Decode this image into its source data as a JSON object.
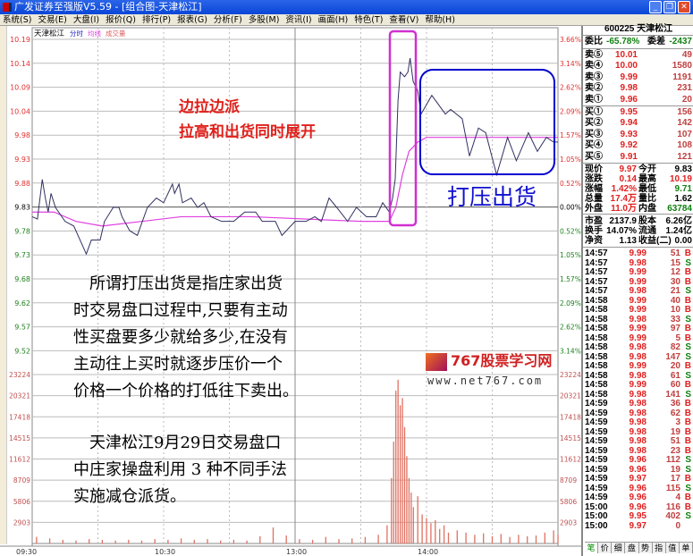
{
  "window": {
    "title": "广发证券至强版V5.59 - [组合图-天津松江]"
  },
  "menu": [
    "系统(S)",
    "交易(E)",
    "大盘(I)",
    "报价(Q)",
    "排行(P)",
    "报表(G)",
    "分析(F)",
    "多股(M)",
    "资讯(I)",
    "画面(H)",
    "特色(T)",
    "查看(V)",
    "帮助(H)"
  ],
  "chart": {
    "stock_name": "天津松江",
    "tag_fenshi": "分时",
    "tag_junxian": "均线",
    "tag_volume": "成交量",
    "price_ticks": [
      "10.19",
      "10.14",
      "10.09",
      "10.04",
      "9.98",
      "9.93",
      "9.88",
      "9.83",
      "9.78",
      "9.73",
      "9.68",
      "9.62",
      "9.57",
      "9.52"
    ],
    "pct_ticks": [
      "3.66%",
      "3.14%",
      "2.62%",
      "2.09%",
      "1.57%",
      "1.05%",
      "0.52%",
      "0.00%",
      "0.52%",
      "1.05%",
      "1.57%",
      "2.09%",
      "2.62%",
      "3.14%"
    ],
    "volume_ticks": [
      "23224",
      "20321",
      "17418",
      "14515",
      "11612",
      "8709",
      "5806",
      "2903"
    ],
    "time_ticks": [
      "09:30",
      "10:30",
      "13:00",
      "14:00"
    ],
    "colors": {
      "price_line": "#303060",
      "avg_line": "#e040e0",
      "volume_bar": "#e07060",
      "highlight_box": "#d030d0",
      "blue_box": "#0000d0"
    }
  },
  "chart_data": {
    "type": "line",
    "prev_close": 9.83,
    "ylim": [
      9.52,
      10.19
    ],
    "volume_max": 23224,
    "price": [
      [
        0,
        9.81
      ],
      [
        2.4,
        9.805
      ],
      [
        4.6,
        9.89
      ],
      [
        6,
        9.85
      ],
      [
        7.3,
        9.82
      ],
      [
        8.6,
        9.86
      ],
      [
        10.6,
        9.83
      ],
      [
        15,
        9.8
      ],
      [
        19,
        9.79
      ],
      [
        24.7,
        9.73
      ],
      [
        27,
        9.76
      ],
      [
        31,
        9.76
      ],
      [
        33,
        9.8
      ],
      [
        37,
        9.83
      ],
      [
        39.6,
        9.83
      ],
      [
        41,
        9.81
      ],
      [
        44.5,
        9.78
      ],
      [
        48,
        9.77
      ],
      [
        52.6,
        9.83
      ],
      [
        56.7,
        9.85
      ],
      [
        60,
        9.84
      ],
      [
        64,
        9.88
      ],
      [
        65,
        9.86
      ],
      [
        67,
        9.88
      ],
      [
        68.6,
        9.84
      ],
      [
        72.6,
        9.85
      ],
      [
        75.5,
        9.83
      ],
      [
        78.4,
        9.84
      ],
      [
        81.6,
        9.81
      ],
      [
        86.5,
        9.8
      ],
      [
        92,
        9.8
      ],
      [
        97,
        9.82
      ],
      [
        102,
        9.82
      ],
      [
        105,
        9.8
      ],
      [
        111,
        9.8
      ],
      [
        114,
        9.77
      ],
      [
        120,
        9.8
      ],
      [
        125,
        9.8
      ],
      [
        129,
        9.81
      ],
      [
        132,
        9.8
      ],
      [
        135.5,
        9.85
      ],
      [
        139,
        9.83
      ],
      [
        144,
        9.8
      ],
      [
        148,
        9.83
      ],
      [
        152.6,
        9.81
      ],
      [
        157,
        9.81
      ],
      [
        160,
        9.84
      ],
      [
        163,
        9.82
      ],
      [
        164.5,
        9.85
      ],
      [
        165.7,
        9.89
      ],
      [
        167,
        10.06
      ],
      [
        168,
        10.12
      ],
      [
        170,
        10.11
      ],
      [
        171.5,
        10.12
      ],
      [
        172.5,
        10.15
      ],
      [
        173.9,
        10.1
      ],
      [
        176,
        10.08
      ],
      [
        177.5,
        10.03
      ],
      [
        182.4,
        10.07
      ],
      [
        188.6,
        10.03
      ],
      [
        191,
        10.04
      ],
      [
        196.3,
        10.02
      ],
      [
        199.6,
        9.94
      ],
      [
        203.7,
        10.0
      ],
      [
        207,
        9.99
      ],
      [
        212,
        9.9
      ],
      [
        217,
        9.98
      ],
      [
        221,
        9.93
      ],
      [
        226.5,
        9.99
      ],
      [
        230.6,
        9.95
      ],
      [
        234.7,
        9.98
      ],
      [
        238,
        9.97
      ],
      [
        240,
        9.97
      ]
    ],
    "average": [
      [
        0,
        9.82
      ],
      [
        10,
        9.82
      ],
      [
        20,
        9.8
      ],
      [
        32,
        9.79
      ],
      [
        50,
        9.8
      ],
      [
        68,
        9.81
      ],
      [
        100,
        9.81
      ],
      [
        150,
        9.8
      ],
      [
        163,
        9.8
      ],
      [
        166,
        9.83
      ],
      [
        169,
        9.9
      ],
      [
        172,
        9.95
      ],
      [
        176,
        9.97
      ],
      [
        180,
        9.98
      ],
      [
        240,
        9.98
      ]
    ],
    "volume": [
      [
        2,
        900
      ],
      [
        8,
        700
      ],
      [
        14,
        500
      ],
      [
        20,
        400
      ],
      [
        26,
        600
      ],
      [
        32,
        500
      ],
      [
        38,
        400
      ],
      [
        44,
        500
      ],
      [
        50,
        400
      ],
      [
        56,
        600
      ],
      [
        62,
        500
      ],
      [
        68,
        700
      ],
      [
        74,
        500
      ],
      [
        80,
        600
      ],
      [
        86,
        400
      ],
      [
        92,
        500
      ],
      [
        98,
        400
      ],
      [
        104,
        1000
      ],
      [
        110,
        2200
      ],
      [
        116,
        1100
      ],
      [
        122,
        600
      ],
      [
        128,
        500
      ],
      [
        134,
        900
      ],
      [
        140,
        600
      ],
      [
        146,
        700
      ],
      [
        152,
        900
      ],
      [
        158,
        1200
      ],
      [
        162,
        2500
      ],
      [
        164,
        9000
      ],
      [
        165,
        14000
      ],
      [
        166,
        21000
      ],
      [
        167,
        22500
      ],
      [
        168,
        19000
      ],
      [
        169,
        20000
      ],
      [
        170,
        16000
      ],
      [
        171,
        12000
      ],
      [
        172,
        9000
      ],
      [
        173,
        7000
      ],
      [
        174,
        5000
      ],
      [
        176,
        6500
      ],
      [
        178,
        4000
      ],
      [
        180,
        3500
      ],
      [
        182,
        2800
      ],
      [
        184,
        3200
      ],
      [
        186,
        2000
      ],
      [
        188,
        2500
      ],
      [
        190,
        1500
      ],
      [
        194,
        1800
      ],
      [
        198,
        1500
      ],
      [
        202,
        1200
      ],
      [
        206,
        1400
      ],
      [
        210,
        1000
      ],
      [
        214,
        1300
      ],
      [
        218,
        900
      ],
      [
        222,
        1200
      ],
      [
        226,
        1000
      ],
      [
        230,
        1100
      ],
      [
        234,
        1500
      ],
      [
        238,
        1800
      ],
      [
        240,
        1200
      ]
    ]
  },
  "annotations": {
    "red_line1": "边拉边派",
    "red_line2": "拉高和出货同时展开",
    "blue_label": "打压出货",
    "para1": [
      "　所谓打压出货是指庄家出货",
      "时交易盘口过程中,只要有主动",
      "性买盘要多少就给多少,在没有",
      "主动往上买时就逐步压价一个",
      "价格一个价格的打低往下卖出。"
    ],
    "para2": [
      "　天津松江9月29日交易盘口",
      "中庄家操盘利用 3 种不同手法",
      "实施减仓派货。"
    ]
  },
  "watermark": {
    "name": "767股票学习网",
    "url": "www.net767.com"
  },
  "quote": {
    "header": "600225 天津松江",
    "weibi_label": "委比",
    "weibi": "-65.78%",
    "weicha_label": "委差",
    "weicha": "-2437",
    "sell": [
      {
        "label": "卖⑤",
        "price": "10.01",
        "vol": "49"
      },
      {
        "label": "卖④",
        "price": "10.00",
        "vol": "1580"
      },
      {
        "label": "卖③",
        "price": "9.99",
        "vol": "1191"
      },
      {
        "label": "卖②",
        "price": "9.98",
        "vol": "231"
      },
      {
        "label": "卖①",
        "price": "9.96",
        "vol": "20"
      }
    ],
    "buy": [
      {
        "label": "买①",
        "price": "9.95",
        "vol": "156"
      },
      {
        "label": "买②",
        "price": "9.94",
        "vol": "142"
      },
      {
        "label": "买③",
        "price": "9.93",
        "vol": "107"
      },
      {
        "label": "买④",
        "price": "9.92",
        "vol": "108"
      },
      {
        "label": "买⑤",
        "price": "9.91",
        "vol": "121"
      }
    ],
    "stats": [
      {
        "l1": "现价",
        "v1": "9.97",
        "l2": "今开",
        "v2": "9.83",
        "c1": "red",
        "c2": "blk"
      },
      {
        "l1": "涨跌",
        "v1": "0.14",
        "l2": "最高",
        "v2": "10.19",
        "c1": "red",
        "c2": "red"
      },
      {
        "l1": "涨幅",
        "v1": "1.42%",
        "l2": "最低",
        "v2": "9.71",
        "c1": "red",
        "c2": "green"
      },
      {
        "l1": "总量",
        "v1": "17.4万",
        "l2": "量比",
        "v2": "1.62",
        "c1": "red",
        "c2": "blk"
      },
      {
        "l1": "外盘",
        "v1": "11.0万",
        "l2": "内盘",
        "v2": "63784",
        "c1": "red",
        "c2": "green"
      },
      {
        "l1": "市盈",
        "v1": "2137.9",
        "l2": "股本",
        "v2": "6.26亿",
        "c1": "blk",
        "c2": "blk"
      },
      {
        "l1": "换手",
        "v1": "14.07%",
        "l2": "流通",
        "v2": "1.24亿",
        "c1": "blk",
        "c2": "blk"
      },
      {
        "l1": "净资",
        "v1": "1.13",
        "l2": "收益(二)",
        "v2": "0.00",
        "c1": "blk",
        "c2": "blk"
      }
    ],
    "trades": [
      [
        "14:57",
        "9.99",
        "51",
        "B"
      ],
      [
        "14:57",
        "9.98",
        "15",
        "S"
      ],
      [
        "14:57",
        "9.99",
        "12",
        "B"
      ],
      [
        "14:57",
        "9.99",
        "30",
        "B"
      ],
      [
        "14:57",
        "9.98",
        "21",
        "S"
      ],
      [
        "14:58",
        "9.99",
        "40",
        "B"
      ],
      [
        "14:58",
        "9.99",
        "10",
        "B"
      ],
      [
        "14:58",
        "9.98",
        "33",
        "S"
      ],
      [
        "14:58",
        "9.99",
        "97",
        "B"
      ],
      [
        "14:58",
        "9.99",
        "5",
        "B"
      ],
      [
        "14:58",
        "9.98",
        "82",
        "S"
      ],
      [
        "14:58",
        "9.98",
        "147",
        "S"
      ],
      [
        "14:58",
        "9.99",
        "20",
        "B"
      ],
      [
        "14:58",
        "9.98",
        "61",
        "S"
      ],
      [
        "14:58",
        "9.99",
        "60",
        "B"
      ],
      [
        "14:58",
        "9.98",
        "141",
        "S"
      ],
      [
        "14:59",
        "9.98",
        "36",
        "B"
      ],
      [
        "14:59",
        "9.98",
        "62",
        "B"
      ],
      [
        "14:59",
        "9.98",
        "3",
        "B"
      ],
      [
        "14:59",
        "9.98",
        "19",
        "B"
      ],
      [
        "14:59",
        "9.98",
        "51",
        "B"
      ],
      [
        "14:59",
        "9.98",
        "23",
        "B"
      ],
      [
        "14:59",
        "9.96",
        "112",
        "S"
      ],
      [
        "14:59",
        "9.96",
        "19",
        "S"
      ],
      [
        "14:59",
        "9.97",
        "17",
        "B"
      ],
      [
        "14:59",
        "9.96",
        "115",
        "S"
      ],
      [
        "14:59",
        "9.96",
        "4",
        "B"
      ],
      [
        "15:00",
        "9.96",
        "116",
        "B"
      ],
      [
        "15:00",
        "9.95",
        "402",
        "S"
      ],
      [
        "15:00",
        "9.97",
        "0",
        ""
      ]
    ],
    "tabs": [
      "笔",
      "价",
      "细",
      "盘",
      "势",
      "指",
      "值",
      "单"
    ]
  }
}
